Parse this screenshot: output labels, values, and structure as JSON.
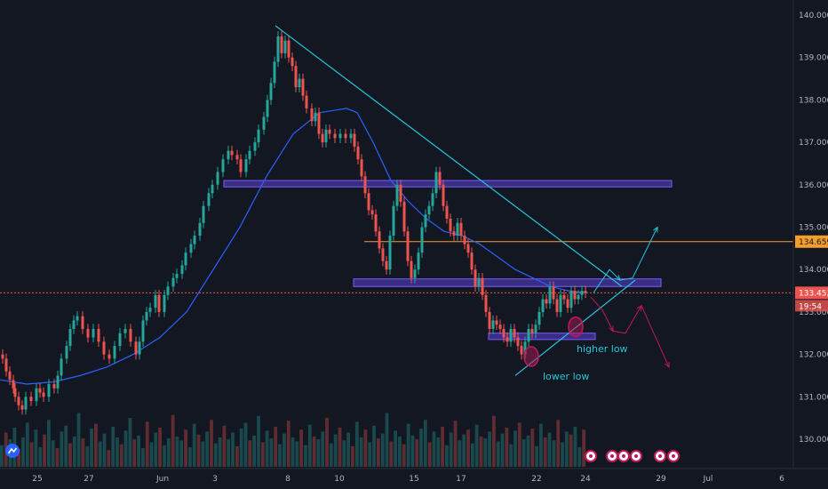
{
  "chart_data": {
    "type": "line",
    "title": "",
    "xlabel": "",
    "ylabel": "",
    "ylim": [
      129.6,
      140.25
    ],
    "y_ticks": [
      130.0,
      131.0,
      132.0,
      133.0,
      134.0,
      135.0,
      136.0,
      137.0,
      138.0,
      139.0,
      140.0
    ],
    "y_tick_labels": [
      "130.000",
      "131.000",
      "132.000",
      "133.000",
      "134.000",
      "135.000",
      "136.000",
      "137.000",
      "138.000",
      "139.000",
      "140.000"
    ],
    "x_tick_labels": [
      "25",
      "27",
      "Jun",
      "3",
      "8",
      "10",
      "15",
      "17",
      "22",
      "24",
      "29",
      "Jul",
      "6"
    ],
    "grid": false,
    "series": [
      {
        "role": "price",
        "x": [
          0,
          4,
          8,
          12,
          16,
          18,
          22,
          26,
          30,
          36,
          42,
          46,
          50,
          56,
          62,
          66,
          70,
          76,
          80,
          84,
          88,
          94,
          100,
          106,
          112,
          118,
          124,
          130,
          136,
          142,
          148,
          154,
          158,
          162,
          166,
          170,
          176,
          180,
          186,
          190,
          196,
          200,
          206,
          210,
          216,
          220,
          226,
          230,
          236,
          240,
          246,
          252,
          258,
          262,
          268,
          272,
          278,
          282,
          288,
          292,
          298,
          302,
          306,
          310,
          314,
          318,
          322,
          326,
          330,
          334,
          338,
          342,
          346,
          352,
          356,
          360,
          364,
          368,
          372,
          378,
          384,
          390,
          396,
          400,
          404,
          408,
          412,
          416,
          420,
          424,
          428,
          432,
          436,
          440,
          444,
          448,
          452,
          456,
          460,
          464,
          468,
          472,
          476,
          480,
          484,
          488,
          492,
          496,
          500,
          504,
          508,
          512,
          516,
          520,
          524,
          528,
          532,
          536,
          540,
          544,
          548,
          552,
          556,
          560,
          564,
          568,
          572,
          576,
          580,
          584,
          588,
          592,
          596,
          600,
          604,
          608,
          612,
          616,
          620,
          624,
          628,
          632,
          636,
          640,
          644,
          648,
          652,
          656,
          660
        ],
        "values": [
          132.0,
          131.9,
          131.6,
          131.4,
          131.2,
          131.0,
          130.8,
          130.7,
          131.0,
          130.9,
          131.2,
          131.1,
          131.0,
          131.3,
          131.2,
          131.5,
          131.9,
          132.2,
          132.6,
          132.8,
          132.9,
          132.6,
          132.4,
          132.6,
          132.3,
          132.0,
          131.9,
          132.2,
          132.5,
          132.6,
          132.3,
          132.0,
          132.3,
          132.8,
          133.0,
          133.1,
          133.4,
          133.0,
          133.4,
          133.6,
          133.8,
          133.9,
          134.1,
          134.4,
          134.6,
          134.8,
          135.1,
          135.5,
          135.8,
          136.0,
          136.3,
          136.6,
          136.8,
          136.7,
          136.6,
          136.3,
          136.6,
          136.8,
          137.0,
          137.3,
          137.6,
          138.0,
          138.4,
          138.9,
          139.5,
          139.1,
          139.4,
          139.0,
          138.8,
          138.3,
          138.5,
          138.1,
          137.8,
          137.5,
          137.7,
          137.2,
          137.0,
          137.3,
          137.2,
          137.1,
          137.2,
          137.1,
          137.2,
          136.9,
          136.6,
          136.2,
          135.8,
          135.4,
          135.3,
          134.9,
          134.5,
          134.2,
          134.0,
          134.8,
          135.5,
          136.0,
          135.6,
          134.9,
          134.2,
          133.8,
          134.0,
          134.4,
          135.0,
          135.3,
          135.5,
          135.8,
          136.3,
          136.0,
          135.5,
          135.2,
          134.9,
          134.8,
          135.1,
          134.8,
          134.6,
          134.4,
          134.0,
          133.6,
          133.8,
          133.4,
          133.0,
          132.6,
          132.8,
          132.7,
          132.6,
          132.4,
          132.3,
          132.6,
          132.4,
          132.2,
          132.0,
          132.3,
          132.6,
          132.5,
          132.7,
          133.0,
          133.3,
          133.2,
          133.6,
          133.3,
          133.0,
          133.4,
          133.3,
          133.1,
          133.5,
          133.3,
          133.4,
          133.5,
          133.45
        ]
      },
      {
        "role": "moving-average",
        "x": [
          0,
          30,
          60,
          90,
          120,
          150,
          180,
          210,
          240,
          270,
          300,
          330,
          360,
          390,
          402,
          420,
          440,
          460,
          480,
          500,
          520,
          540,
          560,
          580,
          600,
          620,
          640,
          660
        ],
        "values": [
          131.4,
          131.3,
          131.35,
          131.5,
          131.7,
          132.0,
          132.4,
          133.0,
          134.0,
          135.0,
          136.2,
          137.2,
          137.7,
          137.8,
          137.7,
          137.0,
          136.1,
          135.6,
          135.2,
          134.9,
          134.8,
          134.6,
          134.3,
          134.0,
          133.8,
          133.6,
          133.5,
          133.45
        ]
      }
    ],
    "volume": [
      22,
      35,
      28,
      40,
      18,
      30,
      45,
      25,
      38,
      20,
      33,
      48,
      27,
      19,
      36,
      42,
      24,
      31,
      55,
      29,
      21,
      39,
      44,
      26,
      34,
      17,
      41,
      30,
      23,
      37,
      50,
      28,
      32,
      19,
      46,
      25,
      35,
      40,
      22,
      29,
      53,
      31,
      27,
      38,
      20,
      44,
      33,
      26,
      36,
      48,
      24,
      30,
      42,
      28,
      35,
      21,
      39,
      45,
      27,
      32,
      52,
      25,
      37,
      29,
      41,
      23,
      34,
      47,
      30,
      26,
      38,
      22,
      43,
      31,
      28,
      36,
      50,
      24,
      33,
      40,
      27,
      35,
      21,
      46,
      30,
      38,
      25,
      42,
      29,
      34,
      55,
      26,
      37,
      31,
      23,
      44,
      32,
      28,
      39,
      48,
      25,
      36,
      30,
      41,
      22,
      35,
      47,
      27,
      33,
      38,
      24,
      43,
      31,
      29,
      36,
      52,
      26,
      34,
      40,
      23,
      37,
      45,
      28,
      32,
      39,
      21,
      44,
      30,
      35,
      27,
      48,
      25,
      36,
      33,
      41,
      20,
      38
    ],
    "horizontal_lines": [
      {
        "role": "resistance",
        "value": 134.659,
        "label": "134.659",
        "color": "#f59d2a"
      },
      {
        "role": "last-price",
        "value": 133.452,
        "label": "133.452",
        "color": "#ef5350"
      }
    ],
    "countdown_label": "19:54",
    "zones": [
      {
        "y_low": 135.95,
        "y_high": 136.1,
        "x_start": 252,
        "x_end": 756,
        "color": "#5b3fd6"
      },
      {
        "y_low": 133.6,
        "y_high": 133.78,
        "x_start": 398,
        "x_end": 744,
        "color": "#5b3fd6"
      },
      {
        "y_low": 132.35,
        "y_high": 132.5,
        "x_start": 550,
        "x_end": 670,
        "color": "#5b3fd6"
      }
    ],
    "trendlines": [
      {
        "role": "downtrend",
        "from": [
          310,
          139.75
        ],
        "to": [
          700,
          133.6
        ],
        "color": "#26c6da"
      },
      {
        "role": "uptrend",
        "from": [
          580,
          131.5
        ],
        "to": [
          715,
          133.75
        ],
        "color": "#26c6da"
      }
    ],
    "projections": [
      {
        "role": "bullish",
        "color": "#26c6da",
        "points": [
          [
            668,
            133.45
          ],
          [
            686,
            134.0
          ],
          [
            698,
            133.75
          ],
          [
            712,
            133.8
          ],
          [
            740,
            135.0
          ]
        ]
      },
      {
        "role": "bearish",
        "color": "#c2185b",
        "points": [
          [
            665,
            133.35
          ],
          [
            678,
            133.05
          ],
          [
            690,
            132.55
          ],
          [
            704,
            132.5
          ],
          [
            722,
            133.15
          ],
          [
            753,
            131.7
          ]
        ]
      }
    ],
    "markers": [
      {
        "role": "lower-low",
        "x": 598,
        "y": 131.95,
        "color": "#c2185b"
      },
      {
        "role": "higher-low",
        "x": 648,
        "y": 132.65,
        "color": "#c2185b"
      }
    ],
    "annotations": [
      {
        "text": "lower low",
        "x": 611,
        "y": 131.4
      },
      {
        "text": "higher low",
        "x": 649,
        "y": 132.05
      }
    ],
    "colors": {
      "background": "#131722",
      "up_candle": "#26a69a",
      "down_candle": "#ef5350",
      "moving_average": "#2962ff",
      "axis_text": "#b2b5be"
    }
  }
}
